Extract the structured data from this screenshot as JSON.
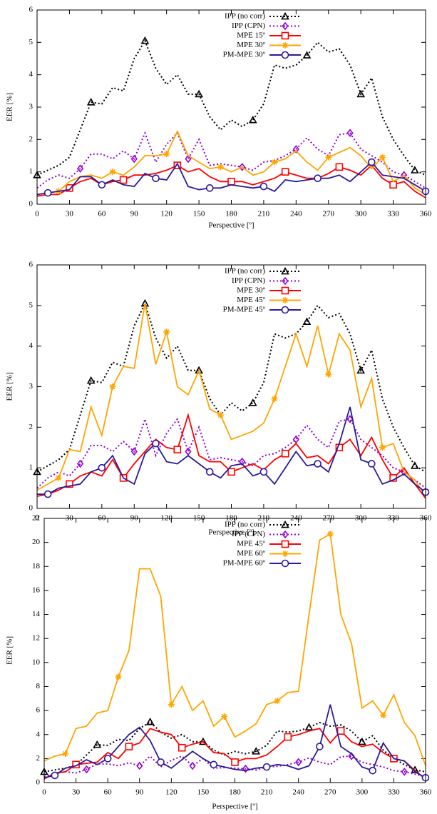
{
  "chart_data": [
    {
      "type": "line",
      "x_label": "Perspective [º]",
      "y_label": "EER [%]",
      "legend": "top-right",
      "xlim": [
        0,
        360
      ],
      "ylim": [
        0,
        6
      ],
      "xticks": [
        0,
        30,
        60,
        90,
        120,
        150,
        180,
        210,
        240,
        270,
        300,
        330,
        360
      ],
      "yticks": [
        0,
        1,
        2,
        3,
        4,
        5,
        6
      ],
      "x": [
        0,
        10,
        20,
        30,
        40,
        50,
        60,
        70,
        80,
        90,
        100,
        110,
        120,
        130,
        140,
        150,
        160,
        170,
        180,
        190,
        200,
        210,
        220,
        230,
        240,
        250,
        260,
        270,
        280,
        290,
        300,
        310,
        320,
        330,
        340,
        350,
        360
      ],
      "series": [
        {
          "name": "IPP (no corr)",
          "color": "#000000",
          "marker": "triangle",
          "dash": true,
          "values": [
            0.9,
            1.05,
            1.2,
            1.45,
            2.3,
            3.15,
            3.1,
            3.6,
            3.5,
            4.5,
            5.05,
            4.2,
            3.7,
            4.0,
            3.4,
            3.4,
            2.7,
            2.3,
            2.6,
            2.4,
            2.6,
            3.1,
            4.3,
            4.2,
            4.3,
            4.6,
            5.0,
            4.7,
            4.8,
            4.3,
            3.4,
            3.9,
            2.7,
            2.0,
            1.5,
            1.05,
            0.9
          ]
        },
        {
          "name": "IPP (CPN)",
          "color": "#9400d3",
          "marker": "diamond",
          "dash": true,
          "values": [
            0.5,
            0.75,
            0.9,
            0.8,
            1.1,
            1.55,
            1.55,
            1.4,
            1.65,
            1.4,
            2.2,
            1.3,
            1.85,
            2.2,
            1.4,
            2.0,
            1.2,
            1.25,
            1.2,
            1.15,
            1.05,
            1.3,
            1.35,
            1.5,
            1.7,
            2.05,
            1.7,
            1.5,
            2.15,
            2.2,
            1.7,
            1.5,
            1.3,
            1.0,
            0.9,
            0.7,
            0.5
          ]
        },
        {
          "name": "MPE 15º",
          "color": "#ff0000",
          "marker": "square",
          "dash": false,
          "values": [
            0.25,
            0.3,
            0.3,
            0.5,
            0.7,
            0.8,
            0.6,
            0.7,
            0.75,
            0.9,
            0.9,
            0.95,
            1.05,
            1.2,
            1.0,
            1.1,
            0.85,
            0.7,
            0.7,
            0.7,
            0.6,
            0.7,
            0.8,
            1.0,
            0.9,
            0.8,
            0.8,
            0.95,
            1.15,
            1.05,
            0.9,
            1.2,
            0.8,
            0.6,
            0.7,
            0.4,
            0.2
          ]
        },
        {
          "name": "MPE 30º",
          "color": "#ffa500",
          "marker": "star",
          "dash": false,
          "values": [
            0.3,
            0.35,
            0.4,
            0.7,
            0.85,
            0.9,
            0.8,
            1.0,
            0.9,
            1.15,
            1.5,
            1.5,
            1.55,
            2.25,
            1.5,
            1.3,
            1.1,
            1.15,
            1.0,
            1.15,
            0.9,
            1.0,
            1.3,
            1.4,
            1.65,
            1.3,
            1.05,
            1.45,
            1.6,
            1.75,
            1.5,
            1.1,
            1.45,
            0.7,
            0.9,
            0.5,
            0.3
          ]
        },
        {
          "name": "PM-MPE 30º",
          "color": "#2a1a9a",
          "marker": "circle",
          "dash": false,
          "values": [
            0.3,
            0.35,
            0.4,
            0.45,
            0.85,
            0.85,
            0.6,
            0.75,
            0.6,
            0.55,
            0.95,
            0.8,
            0.75,
            1.25,
            0.55,
            0.45,
            0.5,
            0.5,
            0.6,
            0.55,
            0.5,
            0.55,
            0.4,
            0.75,
            0.7,
            0.75,
            0.8,
            0.8,
            0.9,
            0.7,
            1.0,
            1.3,
            0.9,
            0.85,
            0.8,
            0.6,
            0.4
          ]
        }
      ]
    },
    {
      "type": "line",
      "x_label": "Perspective [º]",
      "y_label": "EER [%]",
      "legend": "top-right",
      "xlim": [
        0,
        360
      ],
      "ylim": [
        0,
        6
      ],
      "xticks": [
        0,
        30,
        60,
        90,
        120,
        150,
        180,
        210,
        240,
        270,
        300,
        330,
        360
      ],
      "yticks": [
        0,
        1,
        2,
        3,
        4,
        5,
        6
      ],
      "x": [
        0,
        10,
        20,
        30,
        40,
        50,
        60,
        70,
        80,
        90,
        100,
        110,
        120,
        130,
        140,
        150,
        160,
        170,
        180,
        190,
        200,
        210,
        220,
        230,
        240,
        250,
        260,
        270,
        280,
        290,
        300,
        310,
        320,
        330,
        340,
        350,
        360
      ],
      "series": [
        {
          "name": "IPP (no corr)",
          "color": "#000000",
          "marker": "triangle",
          "dash": true,
          "values": [
            0.9,
            1.05,
            1.2,
            1.45,
            2.3,
            3.15,
            3.1,
            3.6,
            3.5,
            4.5,
            5.05,
            4.2,
            3.7,
            4.0,
            3.4,
            3.4,
            2.7,
            2.3,
            2.6,
            2.4,
            2.6,
            3.1,
            4.3,
            4.2,
            4.3,
            4.6,
            5.0,
            4.7,
            4.8,
            4.3,
            3.4,
            3.9,
            2.7,
            2.0,
            1.5,
            1.05,
            0.9
          ]
        },
        {
          "name": "IPP (CPN)",
          "color": "#9400d3",
          "marker": "diamond",
          "dash": true,
          "values": [
            0.5,
            0.75,
            0.9,
            0.8,
            1.1,
            1.55,
            1.55,
            1.4,
            1.65,
            1.4,
            2.2,
            1.3,
            1.85,
            2.2,
            1.4,
            2.0,
            1.2,
            1.25,
            1.2,
            1.15,
            1.05,
            1.3,
            1.35,
            1.5,
            1.7,
            2.05,
            1.7,
            1.5,
            2.15,
            2.2,
            1.7,
            1.5,
            1.3,
            1.0,
            0.9,
            0.7,
            0.5
          ]
        },
        {
          "name": "MPE 30º",
          "color": "#ff0000",
          "marker": "square",
          "dash": false,
          "values": [
            0.3,
            0.35,
            0.45,
            0.6,
            0.8,
            0.9,
            0.8,
            1.2,
            0.75,
            1.1,
            1.4,
            1.7,
            1.5,
            1.45,
            2.3,
            1.3,
            1.15,
            1.15,
            0.9,
            1.0,
            1.1,
            0.95,
            1.2,
            1.35,
            1.6,
            1.25,
            1.3,
            1.1,
            1.5,
            1.7,
            1.3,
            1.75,
            1.2,
            0.75,
            1.0,
            0.6,
            0.25
          ]
        },
        {
          "name": "MPE 45º",
          "color": "#ffa500",
          "marker": "star",
          "dash": false,
          "values": [
            0.45,
            0.6,
            0.75,
            1.45,
            1.4,
            2.5,
            1.8,
            3.0,
            3.5,
            3.45,
            5.05,
            3.55,
            4.35,
            3.0,
            2.8,
            3.4,
            2.45,
            2.3,
            1.7,
            1.8,
            1.9,
            2.1,
            2.7,
            3.5,
            4.3,
            3.5,
            4.5,
            3.3,
            4.3,
            3.9,
            2.5,
            3.2,
            1.5,
            1.6,
            0.9,
            0.7,
            0.3
          ]
        },
        {
          "name": "PM-MPE 45º",
          "color": "#2a1a9a",
          "marker": "circle",
          "dash": false,
          "values": [
            0.35,
            0.35,
            0.5,
            0.55,
            0.6,
            0.9,
            1.0,
            1.3,
            0.75,
            0.6,
            1.35,
            1.6,
            1.15,
            1.1,
            1.3,
            1.1,
            0.9,
            0.75,
            1.05,
            1.1,
            0.8,
            0.9,
            0.6,
            1.0,
            1.4,
            1.05,
            1.1,
            0.9,
            1.6,
            2.5,
            1.2,
            1.1,
            0.6,
            0.7,
            0.85,
            0.6,
            0.4
          ]
        }
      ]
    },
    {
      "type": "line",
      "x_label": "Perspective [º]",
      "y_label": "EER [%]",
      "legend": "top-right",
      "xlim": [
        0,
        360
      ],
      "ylim": [
        0,
        22
      ],
      "xticks": [
        0,
        30,
        60,
        90,
        120,
        150,
        180,
        210,
        240,
        270,
        300,
        330,
        360
      ],
      "yticks": [
        0,
        2,
        4,
        6,
        8,
        10,
        12,
        14,
        16,
        18,
        20,
        22
      ],
      "x": [
        0,
        10,
        20,
        30,
        40,
        50,
        60,
        70,
        80,
        90,
        100,
        110,
        120,
        130,
        140,
        150,
        160,
        170,
        180,
        190,
        200,
        210,
        220,
        230,
        240,
        250,
        260,
        270,
        280,
        290,
        300,
        310,
        320,
        330,
        340,
        350,
        360
      ],
      "series": [
        {
          "name": "IPP (no corr)",
          "color": "#000000",
          "marker": "triangle",
          "dash": true,
          "values": [
            0.9,
            1.05,
            1.2,
            1.45,
            2.3,
            3.15,
            3.1,
            3.6,
            3.5,
            4.5,
            5.05,
            4.2,
            3.7,
            4.0,
            3.4,
            3.4,
            2.7,
            2.3,
            2.6,
            2.4,
            2.6,
            3.1,
            4.3,
            4.2,
            4.3,
            4.6,
            5.0,
            4.7,
            4.8,
            4.3,
            3.4,
            3.9,
            2.7,
            2.0,
            1.5,
            1.05,
            0.9
          ]
        },
        {
          "name": "IPP (CPN)",
          "color": "#9400d3",
          "marker": "diamond",
          "dash": true,
          "values": [
            0.5,
            0.75,
            0.9,
            0.8,
            1.1,
            1.55,
            1.55,
            1.4,
            1.65,
            1.4,
            2.2,
            1.3,
            1.85,
            2.2,
            1.4,
            2.0,
            1.2,
            1.25,
            1.2,
            1.15,
            1.05,
            1.3,
            1.35,
            1.5,
            1.7,
            2.05,
            1.7,
            1.5,
            2.15,
            2.2,
            1.7,
            1.5,
            1.3,
            1.0,
            0.9,
            0.7,
            0.5
          ]
        },
        {
          "name": "MPE 45º",
          "color": "#ff0000",
          "marker": "square",
          "dash": false,
          "values": [
            0.3,
            0.8,
            0.9,
            1.5,
            1.6,
            1.7,
            2.5,
            2.0,
            3.0,
            3.3,
            4.5,
            4.2,
            4.0,
            2.9,
            3.2,
            3.4,
            2.5,
            2.4,
            1.7,
            2.0,
            2.0,
            2.3,
            3.0,
            3.8,
            4.0,
            4.3,
            4.5,
            3.3,
            4.3,
            3.4,
            3.0,
            3.2,
            2.5,
            2.0,
            1.8,
            1.0,
            0.3
          ]
        },
        {
          "name": "MPE 60º",
          "color": "#ffa500",
          "marker": "star",
          "dash": false,
          "values": [
            1.8,
            2.2,
            2.4,
            4.5,
            4.7,
            5.8,
            6.0,
            8.8,
            11,
            17.8,
            17.8,
            15.5,
            6.5,
            8.0,
            6.0,
            6.8,
            4.7,
            5.5,
            3.8,
            4.3,
            4.9,
            6.5,
            6.8,
            7.5,
            7.6,
            14,
            20.2,
            20.7,
            14,
            11.6,
            6.2,
            6.8,
            5.6,
            7.3,
            5.0,
            3.9,
            1.4
          ]
        },
        {
          "name": "PM-MPE 60º",
          "color": "#2a1a9a",
          "marker": "circle",
          "dash": false,
          "values": [
            0.4,
            0.6,
            1.2,
            1.4,
            1.9,
            1.5,
            2.0,
            3.0,
            4.0,
            4.6,
            3.5,
            1.7,
            1.2,
            1.9,
            2.6,
            2.0,
            1.5,
            1.3,
            1.1,
            1.0,
            1.2,
            1.3,
            1.5,
            1.4,
            1.1,
            1.4,
            3.0,
            6.5,
            3.0,
            2.4,
            1.3,
            1.0,
            3.3,
            2.0,
            1.8,
            0.9,
            0.4
          ]
        }
      ]
    }
  ]
}
